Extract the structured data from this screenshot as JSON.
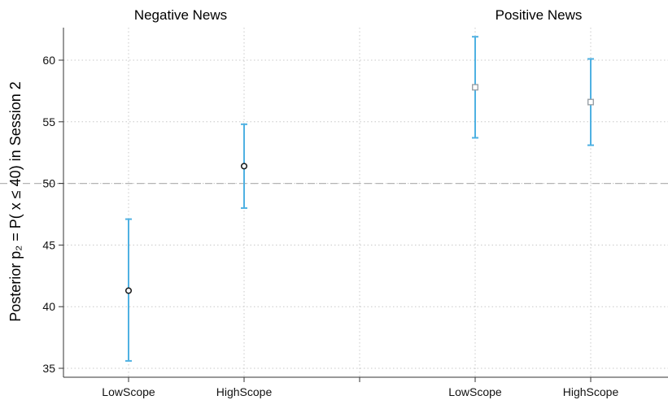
{
  "chart_data": {
    "type": "scatter",
    "panels": [
      "Negative News",
      "Positive News"
    ],
    "categories": [
      "LowScope",
      "HighScope",
      "LowScope",
      "HighScope"
    ],
    "ylabel": "Posterior p₂ = P( x ≤ 40) in Session 2",
    "ylim": [
      35,
      62
    ],
    "yticks": [
      35,
      40,
      45,
      50,
      55,
      60
    ],
    "reference_line": 50,
    "grid": true,
    "points": [
      {
        "panel": "Negative News",
        "category": "LowScope",
        "estimate": 41.3,
        "lower": 35.6,
        "upper": 47.1,
        "marker": "circle"
      },
      {
        "panel": "Negative News",
        "category": "HighScope",
        "estimate": 51.4,
        "lower": 48.0,
        "upper": 54.8,
        "marker": "circle"
      },
      {
        "panel": "Positive News",
        "category": "LowScope",
        "estimate": 57.8,
        "lower": 53.7,
        "upper": 61.9,
        "marker": "square"
      },
      {
        "panel": "Positive News",
        "category": "HighScope",
        "estimate": 56.6,
        "lower": 53.1,
        "upper": 60.1,
        "marker": "square"
      }
    ],
    "colors": {
      "ci": "#4fb1e2",
      "circle_edge": "#1a1a1a",
      "square_edge": "#9aa0a6",
      "grid": "#c8c8c8",
      "reference": "#b4b4b4"
    }
  }
}
